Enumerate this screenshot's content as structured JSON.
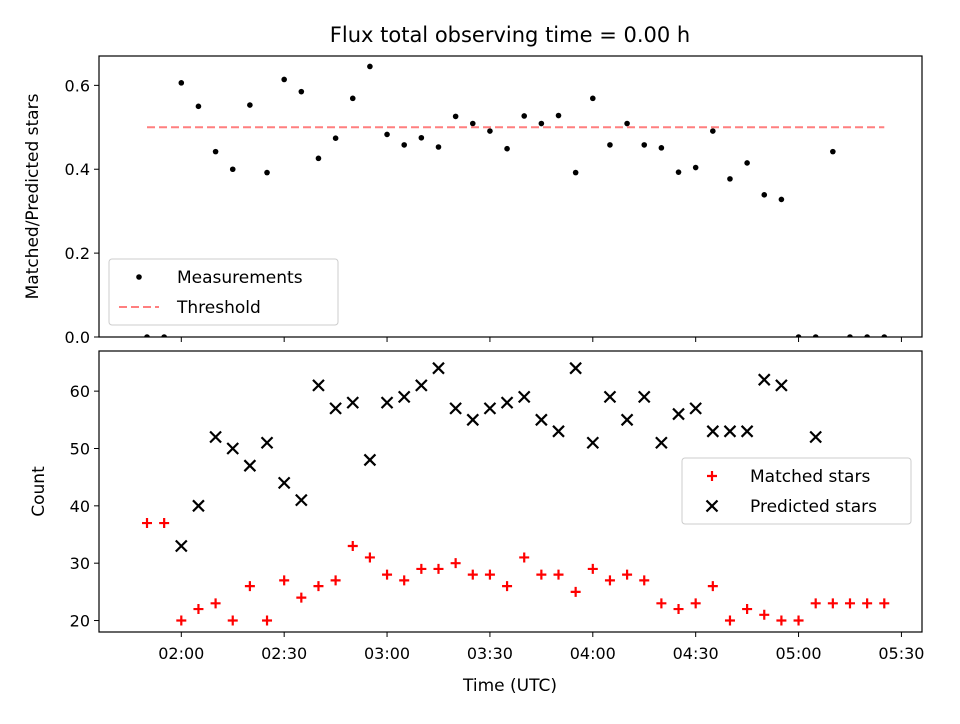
{
  "figure": {
    "title": "Flux total observing time = 0.00 h",
    "xlabel": "Time (UTC)"
  },
  "chart_data": [
    {
      "type": "scatter",
      "ylabel": "Matched/Predicted stars",
      "xlim": [
        "01:36",
        "05:36"
      ],
      "ylim": [
        0,
        0.67
      ],
      "yticks": [
        0.0,
        0.2,
        0.4,
        0.6
      ],
      "ytick_labels": [
        "0.0",
        "0.2",
        "0.4",
        "0.6"
      ],
      "xtick_labels_shown": false,
      "legend_position": "lower-left",
      "series": [
        {
          "name": "Measurements",
          "marker": "dot",
          "color": "#000000",
          "x": [
            "01:50",
            "01:55",
            "02:00",
            "02:05",
            "02:10",
            "02:15",
            "02:20",
            "02:25",
            "02:30",
            "02:35",
            "02:40",
            "02:45",
            "02:50",
            "02:55",
            "03:00",
            "03:05",
            "03:10",
            "03:15",
            "03:20",
            "03:25",
            "03:30",
            "03:35",
            "03:40",
            "03:45",
            "03:50",
            "03:55",
            "04:00",
            "04:05",
            "04:10",
            "04:15",
            "04:20",
            "04:25",
            "04:30",
            "04:35",
            "04:40",
            "04:45",
            "04:50",
            "04:55",
            "05:00",
            "05:05",
            "05:10",
            "05:15",
            "05:20",
            "05:25"
          ],
          "y": [
            0.0,
            0.0,
            0.606,
            0.55,
            0.442,
            0.4,
            0.553,
            0.392,
            0.614,
            0.585,
            0.426,
            0.474,
            0.569,
            0.645,
            0.483,
            0.458,
            0.475,
            0.453,
            0.526,
            0.509,
            0.491,
            0.449,
            0.527,
            0.509,
            0.528,
            0.392,
            0.569,
            0.458,
            0.509,
            0.458,
            0.451,
            0.393,
            0.404,
            0.491,
            0.377,
            0.415,
            0.339,
            0.328,
            0.0,
            0.0,
            0.442,
            0.0,
            0.0,
            0.0
          ]
        },
        {
          "name": "Threshold",
          "marker": "dashed-line",
          "color": "#ff7f7f",
          "x": [
            "01:50",
            "05:25"
          ],
          "y": [
            0.5,
            0.5
          ]
        }
      ]
    },
    {
      "type": "scatter",
      "ylabel": "Count",
      "xlim": [
        "01:36",
        "05:36"
      ],
      "ylim": [
        18,
        67
      ],
      "yticks": [
        20,
        30,
        40,
        50,
        60
      ],
      "ytick_labels": [
        "20",
        "30",
        "40",
        "50",
        "60"
      ],
      "xticks": [
        "02:00",
        "02:30",
        "03:00",
        "03:30",
        "04:00",
        "04:30",
        "05:00",
        "05:30"
      ],
      "xtick_labels": [
        "02:00",
        "02:30",
        "03:00",
        "03:30",
        "04:00",
        "04:30",
        "05:00",
        "05:30"
      ],
      "legend_position": "center-right",
      "series": [
        {
          "name": "Matched stars",
          "marker": "plus",
          "color": "#ff0000",
          "x": [
            "01:50",
            "01:55",
            "02:00",
            "02:05",
            "02:10",
            "02:15",
            "02:20",
            "02:25",
            "02:30",
            "02:35",
            "02:40",
            "02:45",
            "02:50",
            "02:55",
            "03:00",
            "03:05",
            "03:10",
            "03:15",
            "03:20",
            "03:25",
            "03:30",
            "03:35",
            "03:40",
            "03:45",
            "03:50",
            "03:55",
            "04:00",
            "04:05",
            "04:10",
            "04:15",
            "04:20",
            "04:25",
            "04:30",
            "04:35",
            "04:40",
            "04:45",
            "04:50",
            "04:55",
            "05:00",
            "05:05",
            "05:10",
            "05:15",
            "05:20",
            "05:25"
          ],
          "y": [
            37,
            37,
            20,
            22,
            23,
            20,
            26,
            20,
            27,
            24,
            26,
            27,
            33,
            31,
            28,
            27,
            29,
            29,
            30,
            28,
            28,
            26,
            31,
            28,
            28,
            25,
            29,
            27,
            28,
            27,
            23,
            22,
            23,
            26,
            20,
            22,
            21,
            20,
            20,
            23,
            23,
            23,
            23,
            23
          ]
        },
        {
          "name": "Predicted stars",
          "marker": "x",
          "color": "#000000",
          "x": [
            "02:00",
            "02:05",
            "02:10",
            "02:15",
            "02:20",
            "02:25",
            "02:30",
            "02:35",
            "02:40",
            "02:45",
            "02:50",
            "02:55",
            "03:00",
            "03:05",
            "03:10",
            "03:15",
            "03:20",
            "03:25",
            "03:30",
            "03:35",
            "03:40",
            "03:45",
            "03:50",
            "03:55",
            "04:00",
            "04:05",
            "04:10",
            "04:15",
            "04:20",
            "04:25",
            "04:30",
            "04:35",
            "04:40",
            "04:45",
            "04:50",
            "04:55",
            "05:05"
          ],
          "y": [
            33,
            40,
            52,
            50,
            47,
            51,
            44,
            41,
            61,
            57,
            58,
            48,
            58,
            59,
            61,
            64,
            57,
            55,
            57,
            58,
            59,
            55,
            53,
            64,
            51,
            59,
            55,
            59,
            51,
            56,
            57,
            53,
            53,
            53,
            62,
            61,
            52
          ]
        }
      ]
    }
  ]
}
